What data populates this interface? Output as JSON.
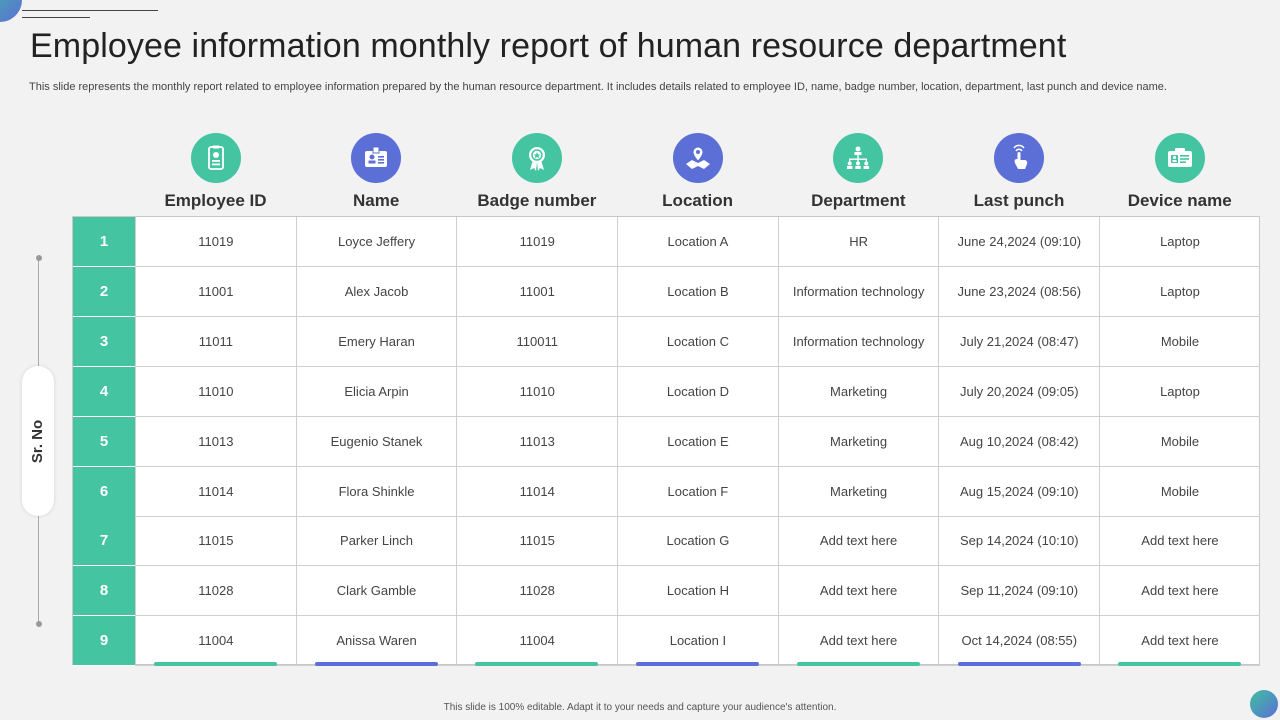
{
  "title": "Employee information monthly report of human resource department",
  "subtitle": "This slide represents the monthly report related to employee information prepared by the human resource department. It includes details related to employee ID, name, badge number, location, department, last punch and device name.",
  "side_label": "Sr. No",
  "colors": {
    "green": "#45c4a2",
    "blue": "#5b6fd6"
  },
  "columns": [
    {
      "label": "Employee ID",
      "icon": "id-card-icon",
      "color": "#45c4a2"
    },
    {
      "label": "Name",
      "icon": "name-badge-icon",
      "color": "#5b6fd6"
    },
    {
      "label": "Badge number",
      "icon": "award-badge-icon",
      "color": "#45c4a2"
    },
    {
      "label": "Location",
      "icon": "map-pin-icon",
      "color": "#5b6fd6"
    },
    {
      "label": "Department",
      "icon": "org-chart-icon",
      "color": "#45c4a2"
    },
    {
      "label": "Last punch",
      "icon": "fingerprint-touch-icon",
      "color": "#5b6fd6"
    },
    {
      "label": "Device name",
      "icon": "device-card-icon",
      "color": "#45c4a2"
    }
  ],
  "rows": [
    {
      "no": "1",
      "cells": [
        "11019",
        "Loyce Jeffery",
        "11019",
        "Location A",
        "HR",
        "June 24,2024 (09:10)",
        "Laptop"
      ]
    },
    {
      "no": "2",
      "cells": [
        "11001",
        "Alex Jacob",
        "11001",
        "Location B",
        "Information technology",
        "June 23,2024 (08:56)",
        "Laptop"
      ]
    },
    {
      "no": "3",
      "cells": [
        "11011",
        "Emery Haran",
        "110011",
        "Location C",
        "Information technology",
        "July 21,2024 (08:47)",
        "Mobile"
      ]
    },
    {
      "no": "4",
      "cells": [
        "11010",
        "Elicia Arpin",
        "11010",
        "Location D",
        "Marketing",
        "July 20,2024 (09:05)",
        "Laptop"
      ]
    },
    {
      "no": "5",
      "cells": [
        "11013",
        "Eugenio Stanek",
        "11013",
        "Location E",
        "Marketing",
        "Aug 10,2024 (08:42)",
        "Mobile"
      ]
    },
    {
      "no": "6",
      "cells": [
        "11014",
        "Flora Shinkle",
        "11014",
        "Location F",
        "Marketing",
        "Aug 15,2024 (09:10)",
        "Mobile"
      ]
    },
    {
      "no": "7",
      "cells": [
        "11015",
        "Parker Linch",
        "11015",
        "Location G",
        "Add text here",
        "Sep 14,2024 (10:10)",
        "Add text here"
      ]
    },
    {
      "no": "8",
      "cells": [
        "11028",
        "Clark Gamble",
        "11028",
        "Location H",
        "Add text here",
        "Sep 11,2024 (09:10)",
        "Add text here"
      ]
    },
    {
      "no": "9",
      "cells": [
        "11004",
        "Anissa Waren",
        "11004",
        "Location I",
        "Add text here",
        "Oct 14,2024 (08:55)",
        "Add text here"
      ]
    }
  ],
  "footer": "This slide is 100% editable. Adapt it to your needs and capture your audience's attention."
}
